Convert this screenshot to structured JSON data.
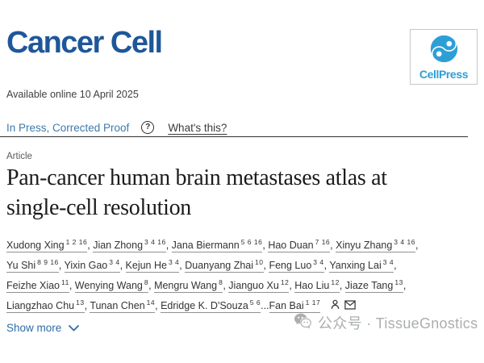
{
  "journal": {
    "name": "Cancer Cell"
  },
  "publisher": {
    "name": "CellPress",
    "logo_icon": "cellpress-swirl-icon",
    "brand_blue": "#2d9fd6"
  },
  "meta": {
    "available_online": "Available online 10 April 2025"
  },
  "status_bar": {
    "status": "In Press, Corrected Proof",
    "help_icon_glyph": "?",
    "help_link": "What's this?"
  },
  "article": {
    "type_label": "Article",
    "title": "Pan-cancer human brain metastases atlas at single-cell resolution",
    "title_lines": [
      "Pan-cancer human brain metastases atlas at",
      "single-cell resolution"
    ]
  },
  "authors": {
    "list": [
      {
        "name": "Xudong Xing",
        "sup": "1 2 16"
      },
      {
        "name": "Jian Zhong",
        "sup": "3 4 16"
      },
      {
        "name": "Jana Biermann",
        "sup": "5 6 16"
      },
      {
        "name": "Hao Duan",
        "sup": "7 16"
      },
      {
        "name": "Xinyu Zhang",
        "sup": "3 4 16",
        "break_after": true
      },
      {
        "name": "Yu Shi",
        "sup": "8 9 16"
      },
      {
        "name": "Yixin Gao",
        "sup": "3 4"
      },
      {
        "name": "Kejun He",
        "sup": "3 4"
      },
      {
        "name": "Duanyang Zhai",
        "sup": "10"
      },
      {
        "name": "Feng Luo",
        "sup": "3 4"
      },
      {
        "name": "Yanxing Lai",
        "sup": "3 4",
        "break_after": true
      },
      {
        "name": "Feizhe Xiao",
        "sup": "11"
      },
      {
        "name": "Wenying Wang",
        "sup": "8"
      },
      {
        "name": "Mengru Wang",
        "sup": "8"
      },
      {
        "name": "Jianguo Xu",
        "sup": "12"
      },
      {
        "name": "Hao Liu",
        "sup": "12"
      },
      {
        "name": "Jiaze Tang",
        "sup": "13",
        "break_after": true
      },
      {
        "name": "Liangzhao Chu",
        "sup": "13"
      },
      {
        "name": "Tunan Chen",
        "sup": "14"
      },
      {
        "name": "Edridge K. D'Souza",
        "sup": "5 6",
        "ellipsis_after": true
      },
      {
        "name": "Fan Bai",
        "sup": "1 17"
      }
    ],
    "ellipsis": "...",
    "separator": ", ",
    "trailing_icons": [
      "person-icon",
      "envelope-icon"
    ]
  },
  "actions": {
    "show_more": "Show more"
  },
  "watermark": {
    "icon": "wechat-official-account-icon",
    "text": "公众号 · TissueGnostics"
  },
  "colors": {
    "journal_logo_blue": "#1e5799",
    "cellpress_blue": "#2d9fd6",
    "status_link_blue": "#3d7aad",
    "show_more_blue": "#2e6ca8",
    "watermark_gray": "#abaeb0",
    "rule_dark": "#2e2e2e"
  }
}
